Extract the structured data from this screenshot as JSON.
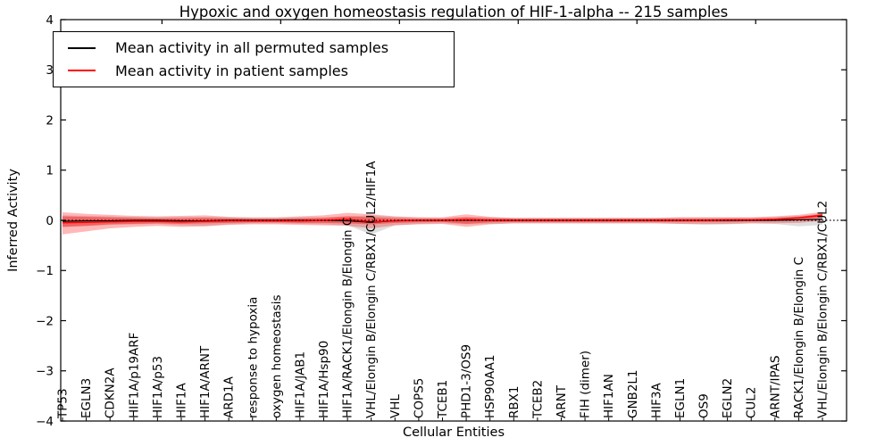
{
  "legend": {
    "items": [
      {
        "label": "Mean activity in all permuted samples",
        "color": "#000000"
      },
      {
        "label": "Mean activity in patient samples",
        "color": "#ff0000"
      }
    ]
  },
  "chart_data": {
    "type": "line",
    "title": "Hypoxic and oxygen homeostasis regulation of HIF-1-alpha -- 215 samples",
    "xlabel": "Cellular Entities",
    "ylabel": "Inferred Activity",
    "ylim": [
      -4,
      4
    ],
    "yticks": [
      4,
      3,
      2,
      1,
      0,
      -1,
      -2,
      -3,
      -4
    ],
    "ytick_labels": [
      "4",
      "3",
      "2",
      "1",
      "0",
      "−1",
      "−2",
      "−3",
      "−4"
    ],
    "grid": false,
    "legend_position": "upper left",
    "zero_line": {
      "style": "dotted",
      "color": "#000000",
      "y": 0
    },
    "categories": [
      "TP53",
      "EGLN3",
      "CDKN2A",
      "HIF1A/p19ARF",
      "HIF1A/p53",
      "HIF1A",
      "HIF1A/ARNT",
      "ARD1A",
      "response to hypoxia",
      "oxygen homeostasis",
      "HIF1A/JAB1",
      "HIF1A/Hsp90",
      "HIF1A/RACK1/Elongin B/Elongin C",
      "VHL/Elongin B/Elongin C/RBX1/CUL2/HIF1A",
      "VHL",
      "COPS5",
      "TCEB1",
      "PHD1-3/OS9",
      "HSP90AA1",
      "RBX1",
      "TCEB2",
      "ARNT",
      "FIH (dimer)",
      "HIF1AN",
      "GNB2L1",
      "HIF3A",
      "EGLN1",
      "OS9",
      "EGLN2",
      "CUL2",
      "ARNT/IPAS",
      "RACK1/Elongin B/Elongin C",
      "VHL/Elongin B/Elongin C/RBX1/CUL2"
    ],
    "series": [
      {
        "name": "Mean activity in all permuted samples",
        "color": "#000000",
        "values": [
          -0.02,
          -0.01,
          -0.01,
          0,
          0,
          -0.01,
          -0.01,
          0,
          0,
          0,
          0,
          0,
          -0.01,
          -0.04,
          -0.01,
          0,
          0,
          0,
          0,
          0,
          0,
          0,
          0,
          0,
          0,
          0,
          0,
          0,
          0,
          0,
          0,
          0.01,
          0.02
        ]
      },
      {
        "name": "Mean activity in patient samples",
        "color": "#ff0000",
        "values": [
          -0.05,
          -0.04,
          -0.03,
          -0.02,
          -0.02,
          -0.03,
          -0.02,
          -0.01,
          -0.01,
          -0.01,
          -0.01,
          0,
          0.02,
          -0.03,
          -0.01,
          0,
          0,
          0.01,
          0,
          0,
          0,
          0,
          0,
          0,
          0,
          0,
          0,
          0,
          0.01,
          0.01,
          0.02,
          0.05,
          0.1
        ]
      }
    ],
    "bands": [
      {
        "name": "permuted-samples-range",
        "color": "#808080",
        "opacity": 0.25,
        "upper": [
          0.1,
          0.09,
          0.08,
          0.07,
          0.06,
          0.07,
          0.07,
          0.06,
          0.05,
          0.05,
          0.06,
          0.06,
          0.08,
          0.1,
          0.07,
          0.06,
          0.05,
          0.07,
          0.06,
          0.05,
          0.05,
          0.05,
          0.05,
          0.05,
          0.05,
          0.05,
          0.06,
          0.06,
          0.06,
          0.06,
          0.07,
          0.09,
          0.13
        ],
        "lower": [
          -0.13,
          -0.11,
          -0.09,
          -0.08,
          -0.07,
          -0.1,
          -0.11,
          -0.08,
          -0.06,
          -0.06,
          -0.07,
          -0.08,
          -0.1,
          -0.28,
          -0.1,
          -0.07,
          -0.06,
          -0.08,
          -0.07,
          -0.06,
          -0.06,
          -0.06,
          -0.06,
          -0.06,
          -0.06,
          -0.06,
          -0.07,
          -0.09,
          -0.08,
          -0.06,
          -0.07,
          -0.12,
          -0.09
        ]
      },
      {
        "name": "patient-samples-range-outer",
        "color": "#ff0000",
        "opacity": 0.28,
        "upper": [
          0.16,
          0.13,
          0.11,
          0.09,
          0.08,
          0.09,
          0.1,
          0.07,
          0.06,
          0.06,
          0.08,
          0.1,
          0.15,
          0.12,
          0.08,
          0.06,
          0.06,
          0.12,
          0.07,
          0.05,
          0.05,
          0.05,
          0.05,
          0.05,
          0.05,
          0.05,
          0.06,
          0.06,
          0.06,
          0.06,
          0.08,
          0.11,
          0.17
        ],
        "lower": [
          -0.28,
          -0.22,
          -0.16,
          -0.13,
          -0.11,
          -0.13,
          -0.12,
          -0.09,
          -0.08,
          -0.08,
          -0.09,
          -0.1,
          -0.11,
          -0.16,
          -0.1,
          -0.08,
          -0.07,
          -0.13,
          -0.08,
          -0.06,
          -0.06,
          -0.06,
          -0.06,
          -0.06,
          -0.06,
          -0.06,
          -0.07,
          -0.07,
          -0.07,
          -0.06,
          -0.06,
          -0.05,
          -0.01
        ]
      },
      {
        "name": "patient-samples-range-inner",
        "color": "#ff0000",
        "opacity": 0.38,
        "upper": [
          0.08,
          0.07,
          0.06,
          0.05,
          0.04,
          0.04,
          0.05,
          0.04,
          0.03,
          0.03,
          0.04,
          0.05,
          0.08,
          0.06,
          0.04,
          0.03,
          0.03,
          0.06,
          0.04,
          0.03,
          0.03,
          0.03,
          0.03,
          0.03,
          0.03,
          0.03,
          0.03,
          0.03,
          0.03,
          0.03,
          0.04,
          0.07,
          0.13
        ],
        "lower": [
          -0.13,
          -0.11,
          -0.08,
          -0.07,
          -0.06,
          -0.07,
          -0.06,
          -0.05,
          -0.04,
          -0.04,
          -0.05,
          -0.05,
          -0.06,
          -0.08,
          -0.05,
          -0.04,
          -0.03,
          -0.07,
          -0.04,
          -0.03,
          -0.03,
          -0.03,
          -0.03,
          -0.03,
          -0.03,
          -0.03,
          -0.03,
          -0.03,
          -0.03,
          -0.02,
          -0.01,
          0.01,
          0.06
        ]
      }
    ]
  }
}
